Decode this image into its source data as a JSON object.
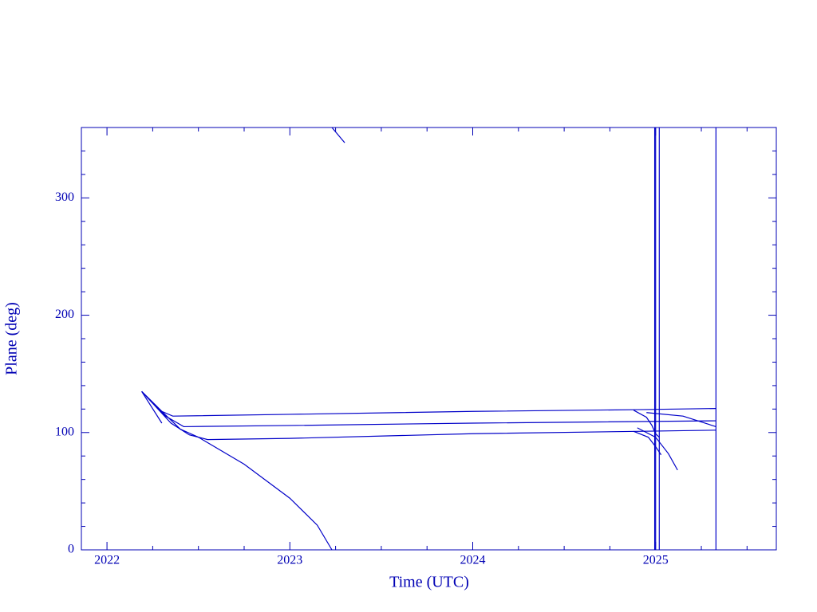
{
  "chart_data": {
    "type": "line",
    "x_label": "Time (UTC)",
    "y_label": "Plane (deg)",
    "color": "#0000c8",
    "xlim": [
      2021.86,
      2025.66
    ],
    "ylim": [
      0,
      360
    ],
    "xticks": [
      2022,
      2023,
      2024,
      2025
    ],
    "yticks": [
      0,
      100,
      200,
      300
    ],
    "xminor": [
      2022.25,
      2022.5,
      2022.75,
      2023.25,
      2023.5,
      2023.75,
      2024.25,
      2024.5,
      2024.75,
      2025.25,
      2025.5
    ],
    "yminor": [
      20,
      40,
      60,
      80,
      120,
      140,
      160,
      180,
      220,
      240,
      260,
      280,
      320,
      340
    ],
    "series": [
      {
        "color": "#0000c8",
        "x": [
          2022.19,
          2022.3,
          2022.4,
          2022.5,
          2022.75,
          2023.0,
          2023.15,
          2023.23
        ],
        "values": [
          135,
          118,
          103,
          96,
          73,
          44,
          21,
          0
        ]
      },
      {
        "color": "#0000c8",
        "x": [
          2023.23,
          2023.3
        ],
        "values": [
          360,
          347
        ]
      },
      {
        "color": "#0000c8",
        "x": [
          2022.19,
          2022.3
        ],
        "values": [
          135,
          108
        ]
      },
      {
        "color": "#0000c8",
        "x": [
          2022.19,
          2022.3,
          2022.36,
          2023.0,
          2024.0,
          2024.9,
          2025.33
        ],
        "values": [
          135,
          118,
          114,
          115.5,
          118,
          119.5,
          120.5
        ]
      },
      {
        "color": "#0000c8",
        "x": [
          2022.19,
          2022.32,
          2022.42,
          2023.0,
          2024.0,
          2025.33
        ],
        "values": [
          135,
          114,
          105,
          106,
          108,
          110
        ]
      },
      {
        "color": "#0000c8",
        "x": [
          2022.19,
          2022.35,
          2022.45,
          2022.55,
          2023.0,
          2024.0,
          2024.9,
          2025.33
        ],
        "values": [
          135,
          108,
          98,
          94,
          95,
          99,
          101,
          102
        ]
      },
      {
        "color": "#0000c8",
        "x": [
          2024.88,
          2024.95,
          2024.98,
          2025.0,
          2025.02
        ],
        "values": [
          119,
          113,
          106,
          99,
          96
        ]
      },
      {
        "color": "#0000c8",
        "x": [
          2024.88,
          2024.96,
          2025.0,
          2025.03
        ],
        "values": [
          101,
          96,
          88,
          81
        ]
      },
      {
        "color": "#0000c8",
        "x": [
          2024.9,
          2025.0,
          2025.07,
          2025.12
        ],
        "values": [
          104,
          96,
          82,
          68
        ]
      },
      {
        "color": "#0000c8",
        "x": [
          2024.95,
          2025.15,
          2025.33
        ],
        "values": [
          117,
          114,
          105
        ]
      },
      {
        "color": "#0000c8",
        "x": [
          2025.0,
          2025.0
        ],
        "values": [
          0,
          360
        ]
      },
      {
        "color": "#0000c8",
        "x": [
          2024.995,
          2024.995
        ],
        "values": [
          0,
          360
        ]
      },
      {
        "color": "#0000c8",
        "x": [
          2025.02,
          2025.02
        ],
        "values": [
          0,
          360
        ]
      },
      {
        "color": "#0000c8",
        "x": [
          2025.33,
          2025.33
        ],
        "values": [
          0,
          360
        ]
      }
    ]
  }
}
